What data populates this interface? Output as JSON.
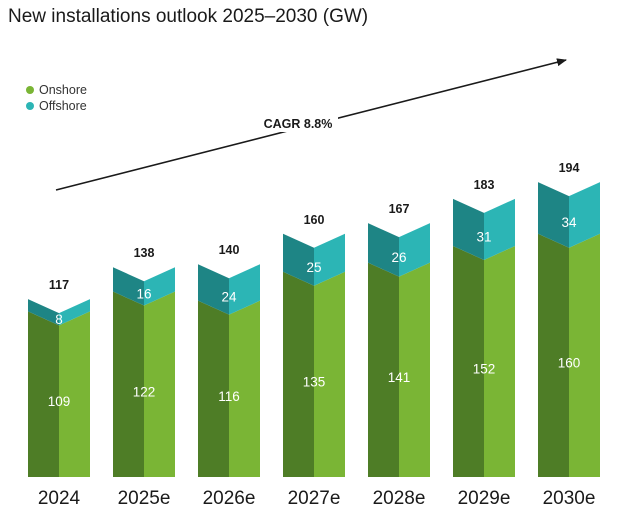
{
  "chart_data": {
    "type": "bar",
    "stacked": true,
    "title": "New installations outlook 2025–2030 (GW)",
    "categories": [
      "2024",
      "2025e",
      "2026e",
      "2027e",
      "2028e",
      "2029e",
      "2030e"
    ],
    "series": [
      {
        "name": "Onshore",
        "values": [
          109,
          122,
          116,
          135,
          141,
          152,
          160
        ],
        "color": "#7ab535"
      },
      {
        "name": "Offshore",
        "values": [
          8,
          16,
          24,
          25,
          26,
          31,
          34
        ],
        "color": "#2cb5b5"
      }
    ],
    "totals": [
      "117",
      "138",
      "140",
      "160",
      "167",
      "183",
      "194"
    ],
    "annotation": "CAGR 8.8%",
    "legend_position": "top-left"
  }
}
